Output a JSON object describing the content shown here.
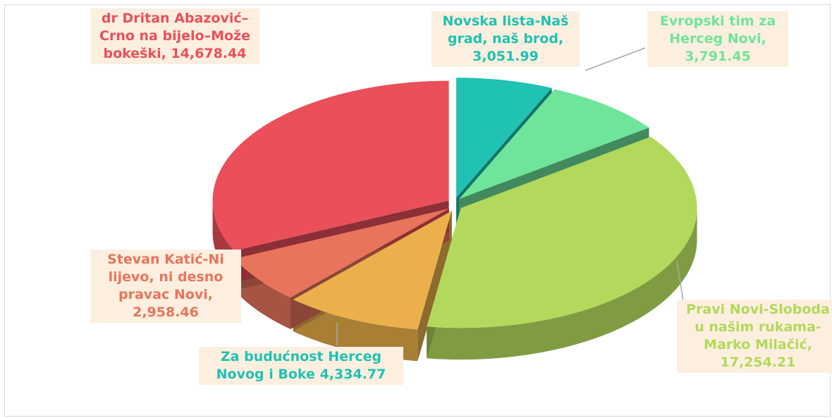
{
  "chart_data": {
    "type": "pie3d",
    "categories": [
      "Novska lista-Naš grad, naš brod,",
      "Evropski tim za Herceg Novi,",
      "Pravi Novi-Sloboda u našim rukama-Marko Milačić,",
      "Za budućnost Herceg Novog i Boke",
      "Stevan Katić-Ni lijevo, ni desno pravac Novi,",
      "dr Dritan Abazović–Crno na bijelo–Može bokeški,"
    ],
    "values": [
      3051.99,
      3791.45,
      17254.21,
      4334.77,
      2958.46,
      14678.44
    ],
    "value_labels": [
      "3,051.99",
      "3,791.45",
      "17,254.21",
      "4,334.77",
      "2,958.46",
      "14,678.44"
    ],
    "colors": [
      "#1fc2b3",
      "#6ee59b",
      "#b2d95b",
      "#ebb04b",
      "#e8745b",
      "#ea4f5a"
    ],
    "label_colors": [
      "#1fc2b3",
      "#6ee59b",
      "#b2d95b",
      "#1fc2b3",
      "#e8745b",
      "#ea4f5a"
    ]
  }
}
